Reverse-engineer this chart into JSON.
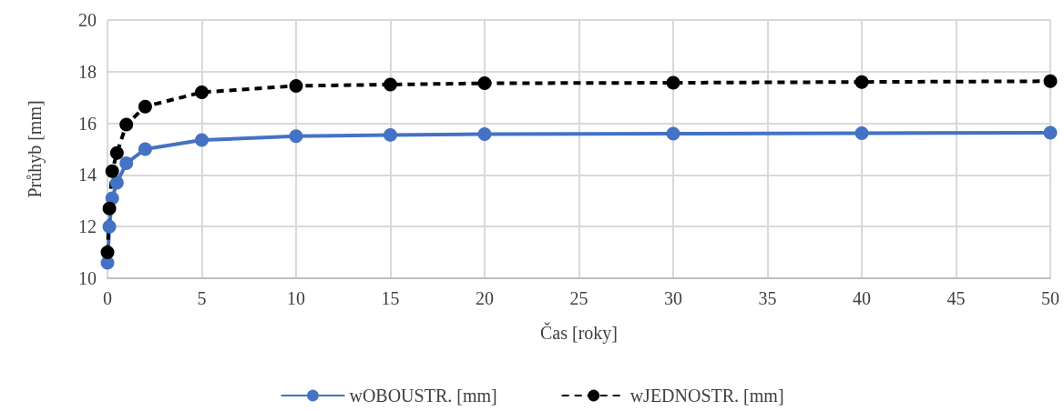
{
  "chart_data": {
    "type": "line",
    "xlabel": "Čas [roky]",
    "ylabel": "Průhyb [mm]",
    "x": [
      0,
      0.1,
      0.25,
      0.5,
      1,
      2,
      5,
      10,
      15,
      20,
      30,
      40,
      50
    ],
    "series": [
      {
        "name": "wOBOUSTR. [mm]",
        "color": "#4472c4",
        "line_style": "solid",
        "values": [
          10.6,
          12.0,
          13.1,
          13.7,
          14.45,
          15.0,
          15.35,
          15.5,
          15.55,
          15.58,
          15.6,
          15.62,
          15.63
        ]
      },
      {
        "name": "wJEDNOSTR. [mm]",
        "color": "#000000",
        "line_style": "dashed",
        "values": [
          11.0,
          12.7,
          14.15,
          14.85,
          15.95,
          16.65,
          17.2,
          17.45,
          17.5,
          17.55,
          17.57,
          17.6,
          17.63
        ]
      }
    ],
    "xlim": [
      0,
      50
    ],
    "xticks": [
      0,
      5,
      10,
      15,
      20,
      25,
      30,
      35,
      40,
      45,
      50
    ],
    "ylim": [
      10,
      20
    ],
    "yticks": [
      10,
      12,
      14,
      16,
      18,
      20
    ],
    "grid": true,
    "legend": "bottom",
    "marker": "circle"
  }
}
